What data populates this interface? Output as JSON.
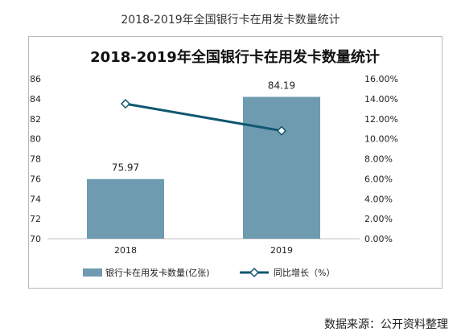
{
  "page": {
    "title": "2018-2019年全国银行卡在用发卡数量统计",
    "source": "数据来源：公开资料整理"
  },
  "chart_data": {
    "type": "bar",
    "title": "2018-2019年全国银行卡在用发卡数量统计",
    "categories": [
      "2018",
      "2019"
    ],
    "series": [
      {
        "name": "银行卡在用发卡数量(亿张)",
        "type": "bar",
        "axis": "left",
        "values": [
          75.97,
          84.19
        ],
        "data_labels": [
          "75.97",
          "84.19"
        ],
        "color": "#6f9bb0"
      },
      {
        "name": "同比增长（%）",
        "type": "line",
        "axis": "right",
        "values": [
          13.5,
          10.8
        ],
        "color": "#0f5770"
      }
    ],
    "y_left": {
      "min": 70,
      "max": 86,
      "ticks": [
        "70",
        "72",
        "74",
        "76",
        "78",
        "80",
        "82",
        "84",
        "86"
      ]
    },
    "y_right": {
      "min": 0,
      "max": 16,
      "ticks": [
        "0.00%",
        "2.00%",
        "4.00%",
        "6.00%",
        "8.00%",
        "10.00%",
        "12.00%",
        "14.00%",
        "16.00%"
      ]
    },
    "legend_placement": "bottom",
    "grid": false
  }
}
